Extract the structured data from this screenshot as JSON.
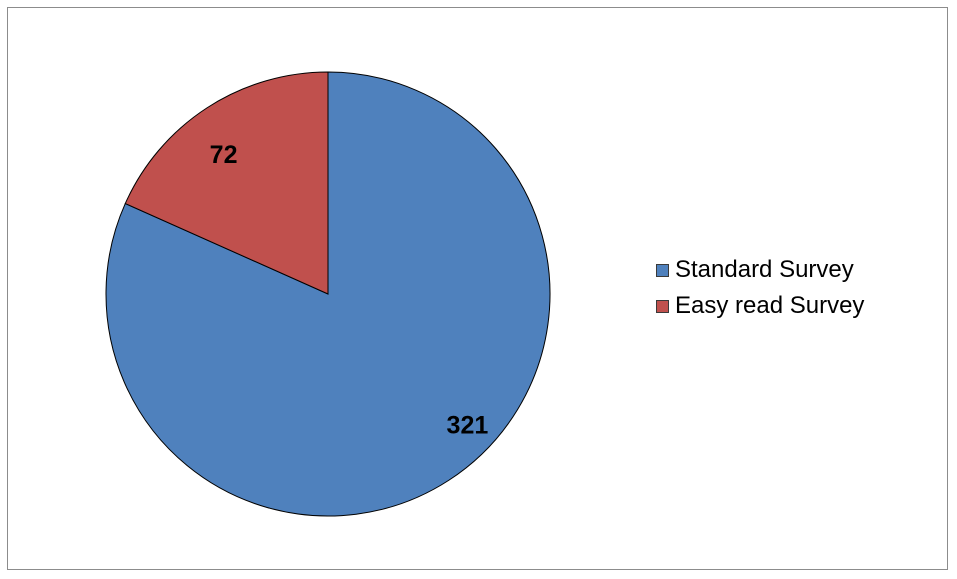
{
  "chart_data": {
    "type": "pie",
    "categories": [
      "Standard Survey",
      "Easy read Survey"
    ],
    "values": [
      321,
      72
    ],
    "colors": [
      "#4f81bd",
      "#c0504d"
    ],
    "data_labels": [
      "321",
      "72"
    ],
    "legend_placement": "right"
  }
}
